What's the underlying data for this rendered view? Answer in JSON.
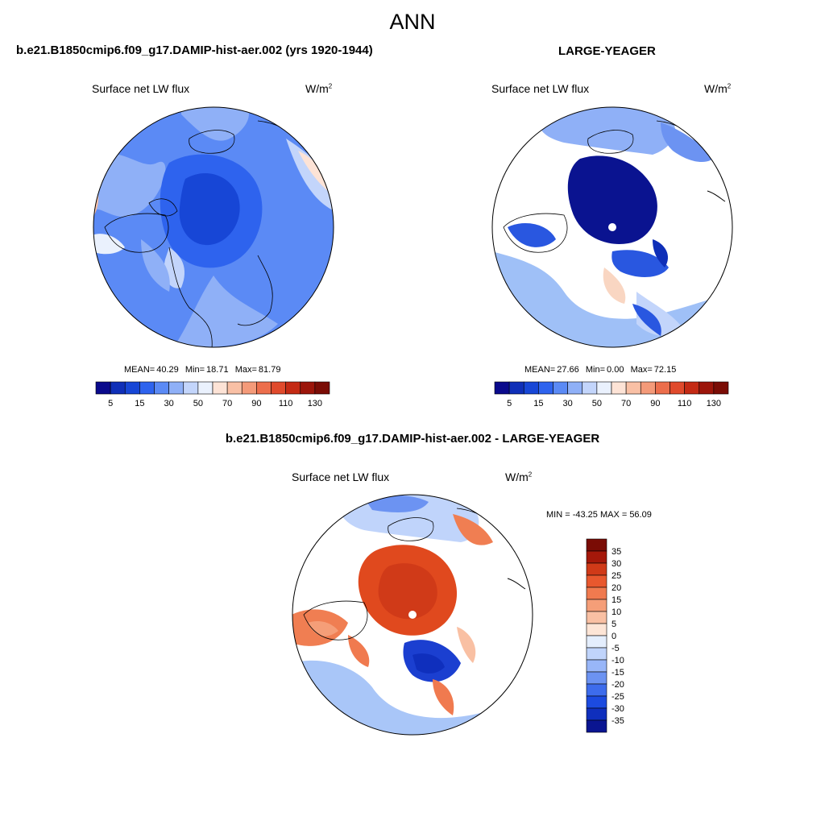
{
  "title": "ANN",
  "panels": [
    {
      "id": "model",
      "case_title": "b.e21.B1850cmip6.f09_g17.DAMIP-hist-aer.002 (yrs 1920-1944)",
      "variable": "Surface net LW flux",
      "units_base": "W/m",
      "units_exp": "2",
      "stats": {
        "mean_label": "MEAN=",
        "mean": "40.29",
        "min_label": "Min=",
        "min": "18.71",
        "max_label": "Max=",
        "max": "81.79"
      }
    },
    {
      "id": "obs",
      "case_title": "LARGE-YEAGER",
      "variable": "Surface net LW flux",
      "units_base": "W/m",
      "units_exp": "2",
      "stats": {
        "mean_label": "MEAN=",
        "mean": "27.66",
        "min_label": "Min=",
        "min": "0.00",
        "max_label": "Max=",
        "max": "72.15"
      }
    },
    {
      "id": "diff",
      "case_title": "b.e21.B1850cmip6.f09_g17.DAMIP-hist-aer.002 - LARGE-YEAGER",
      "variable": "Surface net LW flux",
      "units_base": "W/m",
      "units_exp": "2",
      "minmax_text": "MIN = -43.25 MAX =  56.09"
    }
  ],
  "colorbar_abs": {
    "colors": [
      "#0a0a8c",
      "#0f2fb8",
      "#1746d6",
      "#2e63ee",
      "#5b8af5",
      "#8fb0f7",
      "#c3d5fb",
      "#eaf1fd",
      "#fde3d6",
      "#f9c0a5",
      "#f49a79",
      "#ec6e4c",
      "#e04a2c",
      "#c42a14",
      "#9c150a",
      "#7a0c05"
    ],
    "tick_labels": [
      "5",
      "15",
      "30",
      "50",
      "70",
      "90",
      "110",
      "130"
    ]
  },
  "colorbar_diff": {
    "colors": [
      "#7a0c05",
      "#a5180a",
      "#d03a18",
      "#e8582e",
      "#f07a4f",
      "#f59e78",
      "#f9c0a3",
      "#fde5d6",
      "#e4eefd",
      "#c0d4fb",
      "#98b6f8",
      "#6c93f2",
      "#3d6cec",
      "#1c4be0",
      "#0f2fbd",
      "#0a1591"
    ],
    "tick_labels": [
      "35",
      "30",
      "25",
      "20",
      "15",
      "10",
      "5",
      "0",
      "-5",
      "-10",
      "-15",
      "-20",
      "-25",
      "-30",
      "-35"
    ]
  },
  "map_palettes": {
    "model": {
      "ocean": "#4f86f0",
      "core": "#3564e6",
      "edge": "#8fb3f6",
      "warm": "#f9cdb5",
      "land": "#ffffff"
    },
    "obs": {
      "ocean": "#9fc0f7",
      "core": "#0a1390",
      "edge": "#2957e0",
      "warm": "#f9d6c2",
      "land": "#ffffff"
    },
    "diff": {
      "ocean": "#a9c6f8",
      "core": "#e0491e",
      "edge": "#f07e52",
      "cold": "#1b3fd0",
      "land": "#ffffff"
    }
  }
}
